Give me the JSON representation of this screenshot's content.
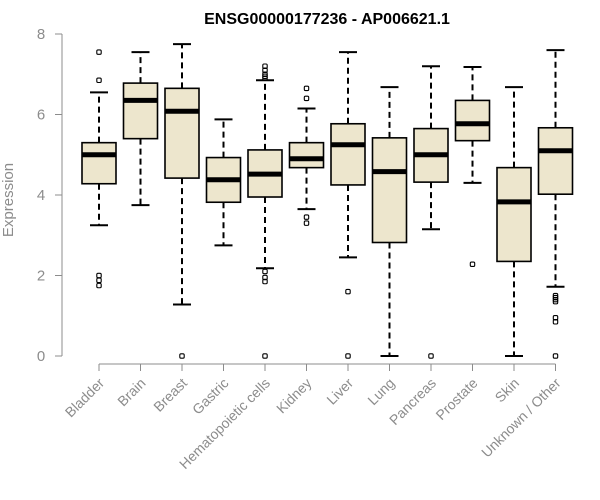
{
  "chart_data": {
    "type": "box",
    "title": "ENSG00000177236 - AP006621.1",
    "xlabel": "",
    "ylabel": "Expression",
    "ylim": [
      0,
      8
    ],
    "yticks": [
      0,
      2,
      4,
      6,
      8
    ],
    "grid": false,
    "legend": "none",
    "colors": {
      "box_fill": "#ede6cd",
      "stroke": "#000000",
      "axis_text": "#8c8c8c",
      "title": "#000000"
    },
    "categories": [
      "Bladder",
      "Brain",
      "Breast",
      "Gastric",
      "Hematopoietic cells",
      "Kidney",
      "Liver",
      "Lung",
      "Pancreas",
      "Prostate",
      "Skin",
      "Unknown / Other"
    ],
    "boxes": [
      {
        "label": "Bladder",
        "q1": 4.28,
        "median": 5.0,
        "q3": 5.3,
        "whisker_low": 3.25,
        "whisker_high": 6.55,
        "outliers": [
          7.55,
          6.85,
          2.0,
          1.88,
          1.75
        ]
      },
      {
        "label": "Brain",
        "q1": 5.4,
        "median": 6.35,
        "q3": 6.78,
        "whisker_low": 3.75,
        "whisker_high": 7.55,
        "outliers": []
      },
      {
        "label": "Breast",
        "q1": 4.42,
        "median": 6.08,
        "q3": 6.65,
        "whisker_low": 1.28,
        "whisker_high": 7.75,
        "outliers": [
          0.0
        ]
      },
      {
        "label": "Gastric",
        "q1": 3.82,
        "median": 4.38,
        "q3": 4.93,
        "whisker_low": 2.75,
        "whisker_high": 5.88,
        "outliers": []
      },
      {
        "label": "Hematopoietic cells",
        "q1": 3.95,
        "median": 4.52,
        "q3": 5.12,
        "whisker_low": 2.18,
        "whisker_high": 6.85,
        "outliers": [
          7.2,
          7.1,
          7.0,
          6.95,
          6.9,
          2.1,
          1.95,
          1.85,
          0.0
        ]
      },
      {
        "label": "Kidney",
        "q1": 4.68,
        "median": 4.9,
        "q3": 5.3,
        "whisker_low": 3.65,
        "whisker_high": 6.15,
        "outliers": [
          6.65,
          6.4,
          3.45,
          3.3
        ]
      },
      {
        "label": "Liver",
        "q1": 4.25,
        "median": 5.25,
        "q3": 5.77,
        "whisker_low": 2.45,
        "whisker_high": 7.55,
        "outliers": [
          1.6,
          0.0
        ]
      },
      {
        "label": "Lung",
        "q1": 2.82,
        "median": 4.58,
        "q3": 5.42,
        "whisker_low": 0.0,
        "whisker_high": 6.68,
        "outliers": []
      },
      {
        "label": "Pancreas",
        "q1": 4.32,
        "median": 5.0,
        "q3": 5.65,
        "whisker_low": 3.15,
        "whisker_high": 7.2,
        "outliers": [
          0.0
        ]
      },
      {
        "label": "Prostate",
        "q1": 5.35,
        "median": 5.77,
        "q3": 6.35,
        "whisker_low": 4.3,
        "whisker_high": 7.18,
        "outliers": [
          2.28
        ]
      },
      {
        "label": "Skin",
        "q1": 2.35,
        "median": 3.83,
        "q3": 4.68,
        "whisker_low": 0.0,
        "whisker_high": 6.68,
        "outliers": []
      },
      {
        "label": "Unknown / Other",
        "q1": 4.02,
        "median": 5.1,
        "q3": 5.67,
        "whisker_low": 1.72,
        "whisker_high": 7.6,
        "outliers": [
          1.5,
          1.45,
          1.4,
          1.35,
          0.95,
          0.85,
          0.0
        ]
      }
    ]
  }
}
